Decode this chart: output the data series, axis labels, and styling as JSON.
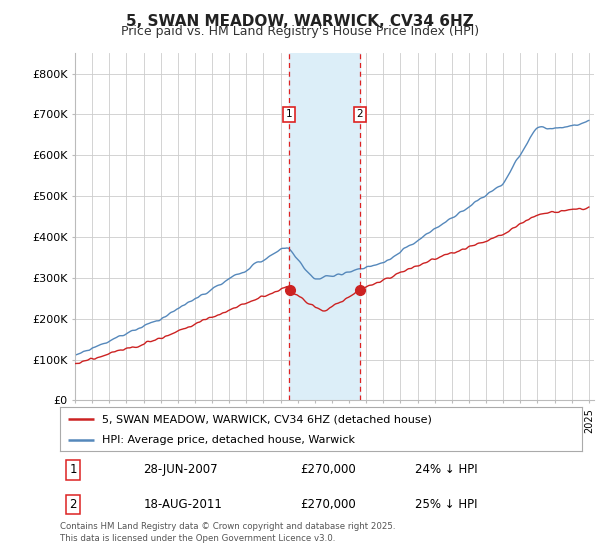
{
  "title": "5, SWAN MEADOW, WARWICK, CV34 6HZ",
  "subtitle": "Price paid vs. HM Land Registry's House Price Index (HPI)",
  "ylim": [
    0,
    850000
  ],
  "yticks": [
    0,
    100000,
    200000,
    300000,
    400000,
    500000,
    600000,
    700000,
    800000
  ],
  "ytick_labels": [
    "£0",
    "£100K",
    "£200K",
    "£300K",
    "£400K",
    "£500K",
    "£600K",
    "£700K",
    "£800K"
  ],
  "hpi_color": "#5588bb",
  "price_color": "#cc2222",
  "marker1_date": 2007.5,
  "marker2_date": 2011.63,
  "marker1_price": 270000,
  "marker2_price": 270000,
  "legend_price_label": "5, SWAN MEADOW, WARWICK, CV34 6HZ (detached house)",
  "legend_hpi_label": "HPI: Average price, detached house, Warwick",
  "annotation1_date": "28-JUN-2007",
  "annotation1_price": "£270,000",
  "annotation1_hpi": "24% ↓ HPI",
  "annotation2_date": "18-AUG-2011",
  "annotation2_price": "£270,000",
  "annotation2_hpi": "25% ↓ HPI",
  "footer": "Contains HM Land Registry data © Crown copyright and database right 2025.\nThis data is licensed under the Open Government Licence v3.0.",
  "background_color": "#ffffff",
  "grid_color": "#cccccc",
  "span_color": "#dceef8"
}
